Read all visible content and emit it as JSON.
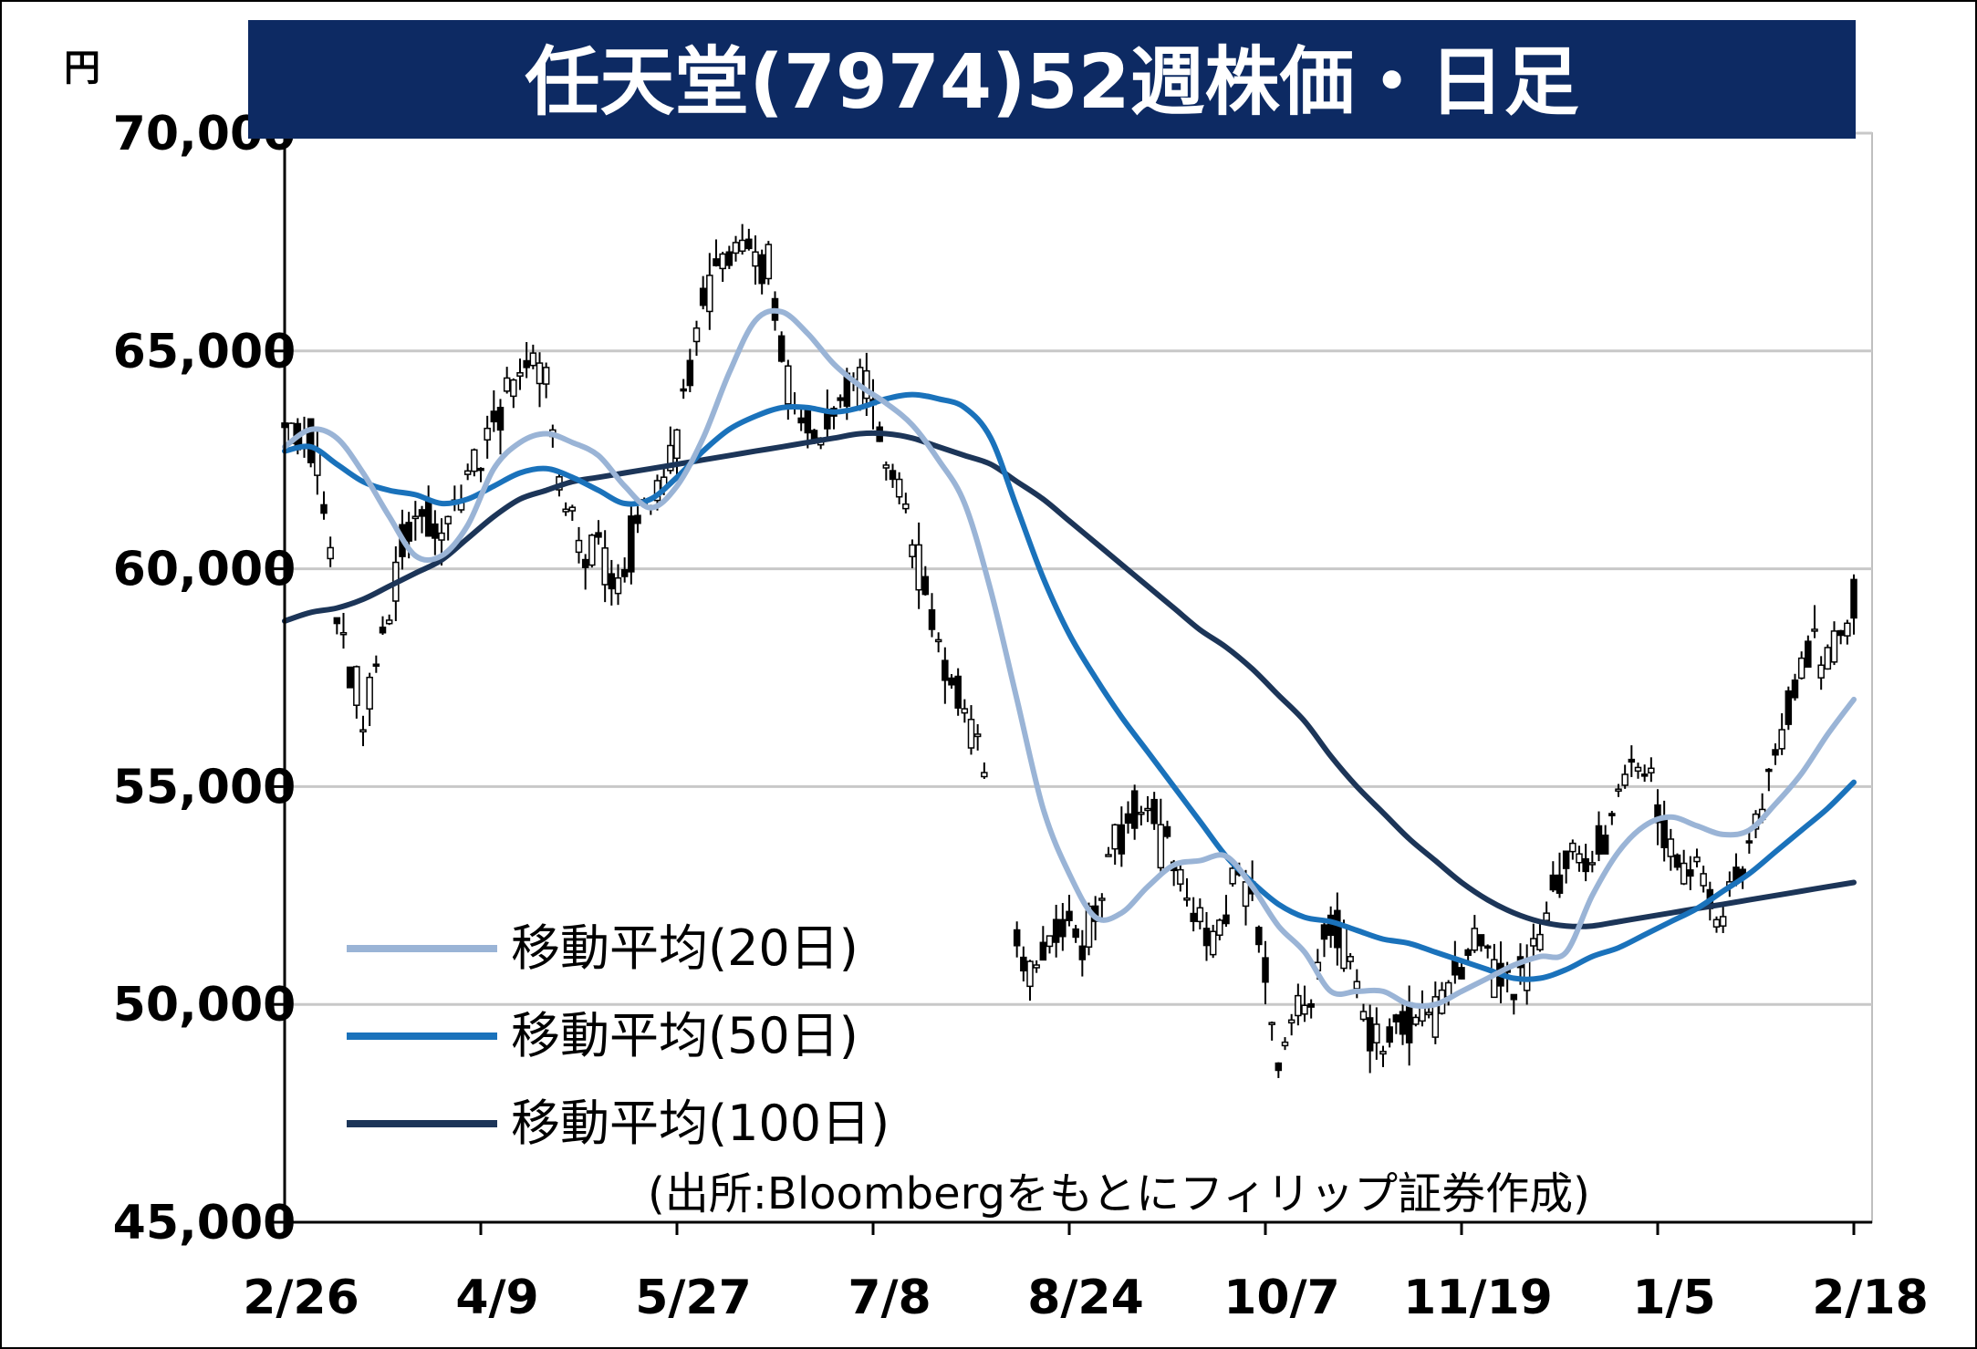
{
  "chart_data": {
    "type": "line",
    "title": "任天堂(7974)52週株価・日足",
    "unit_label": "円",
    "ylim": [
      45000,
      70000
    ],
    "yticks": [
      45000,
      50000,
      55000,
      60000,
      65000,
      70000
    ],
    "ytick_labels": [
      "45,000",
      "50,000",
      "55,000",
      "60,000",
      "65,000",
      "70,000"
    ],
    "x_tick_labels": [
      "2/26",
      "4/9",
      "5/27",
      "7/8",
      "8/24",
      "10/7",
      "11/19",
      "1/5",
      "2/18"
    ],
    "x_tick_index": [
      0,
      30,
      60,
      90,
      120,
      150,
      180,
      210,
      240
    ],
    "grid": "horizontal",
    "legend_position": "bottom-left",
    "source": "(出所:Bloombergをもとにフィリップ証券作成)",
    "colors": {
      "title_bg": "#0d2a63",
      "title_fg": "#ffffff",
      "ma20": "#9ab4d6",
      "ma50": "#1a72bb",
      "ma100": "#1c3558",
      "candle": "#000000",
      "grid": "#c8c8c8"
    },
    "series": [
      {
        "name": "移動平均(20日)",
        "key": "ma20",
        "anchors": [
          [
            0,
            62800
          ],
          [
            4,
            63200
          ],
          [
            8,
            63000
          ],
          [
            12,
            62200
          ],
          [
            16,
            61200
          ],
          [
            20,
            60300
          ],
          [
            24,
            60300
          ],
          [
            28,
            61000
          ],
          [
            32,
            62300
          ],
          [
            36,
            62900
          ],
          [
            40,
            63100
          ],
          [
            44,
            62900
          ],
          [
            48,
            62600
          ],
          [
            52,
            61900
          ],
          [
            56,
            61400
          ],
          [
            60,
            61900
          ],
          [
            64,
            63000
          ],
          [
            68,
            64500
          ],
          [
            72,
            65700
          ],
          [
            76,
            65900
          ],
          [
            80,
            65400
          ],
          [
            84,
            64700
          ],
          [
            88,
            64200
          ],
          [
            92,
            63800
          ],
          [
            96,
            63300
          ],
          [
            100,
            62500
          ],
          [
            104,
            61500
          ],
          [
            108,
            59500
          ],
          [
            112,
            57000
          ],
          [
            116,
            54500
          ],
          [
            120,
            53000
          ],
          [
            124,
            52000
          ],
          [
            128,
            52100
          ],
          [
            132,
            52700
          ],
          [
            136,
            53200
          ],
          [
            140,
            53300
          ],
          [
            144,
            53400
          ],
          [
            148,
            52700
          ],
          [
            152,
            51800
          ],
          [
            156,
            51200
          ],
          [
            160,
            50300
          ],
          [
            164,
            50300
          ],
          [
            168,
            50300
          ],
          [
            172,
            50000
          ],
          [
            176,
            50000
          ],
          [
            180,
            50300
          ],
          [
            184,
            50600
          ],
          [
            188,
            50900
          ],
          [
            192,
            51100
          ],
          [
            196,
            51200
          ],
          [
            200,
            52500
          ],
          [
            204,
            53500
          ],
          [
            208,
            54100
          ],
          [
            212,
            54300
          ],
          [
            216,
            54100
          ],
          [
            220,
            53900
          ],
          [
            224,
            54000
          ],
          [
            228,
            54600
          ],
          [
            232,
            55300
          ],
          [
            236,
            56200
          ],
          [
            240,
            57000
          ]
        ]
      },
      {
        "name": "移動平均(50日)",
        "key": "ma50",
        "anchors": [
          [
            0,
            62700
          ],
          [
            4,
            62800
          ],
          [
            8,
            62400
          ],
          [
            12,
            62000
          ],
          [
            16,
            61800
          ],
          [
            20,
            61700
          ],
          [
            24,
            61500
          ],
          [
            28,
            61600
          ],
          [
            32,
            61900
          ],
          [
            36,
            62200
          ],
          [
            40,
            62300
          ],
          [
            44,
            62100
          ],
          [
            48,
            61800
          ],
          [
            52,
            61500
          ],
          [
            56,
            61600
          ],
          [
            60,
            62100
          ],
          [
            64,
            62700
          ],
          [
            68,
            63200
          ],
          [
            72,
            63500
          ],
          [
            76,
            63700
          ],
          [
            80,
            63700
          ],
          [
            84,
            63600
          ],
          [
            88,
            63700
          ],
          [
            92,
            63900
          ],
          [
            96,
            64000
          ],
          [
            100,
            63900
          ],
          [
            104,
            63700
          ],
          [
            108,
            63000
          ],
          [
            112,
            61400
          ],
          [
            116,
            59800
          ],
          [
            120,
            58500
          ],
          [
            124,
            57500
          ],
          [
            128,
            56600
          ],
          [
            132,
            55800
          ],
          [
            136,
            55000
          ],
          [
            140,
            54200
          ],
          [
            144,
            53400
          ],
          [
            148,
            52800
          ],
          [
            152,
            52300
          ],
          [
            156,
            52000
          ],
          [
            160,
            51900
          ],
          [
            164,
            51700
          ],
          [
            168,
            51500
          ],
          [
            172,
            51400
          ],
          [
            176,
            51200
          ],
          [
            180,
            51000
          ],
          [
            184,
            50800
          ],
          [
            188,
            50600
          ],
          [
            192,
            50600
          ],
          [
            196,
            50800
          ],
          [
            200,
            51100
          ],
          [
            204,
            51300
          ],
          [
            208,
            51600
          ],
          [
            212,
            51900
          ],
          [
            216,
            52200
          ],
          [
            220,
            52600
          ],
          [
            224,
            53000
          ],
          [
            228,
            53500
          ],
          [
            232,
            54000
          ],
          [
            236,
            54500
          ],
          [
            240,
            55100
          ]
        ]
      },
      {
        "name": "移動平均(100日)",
        "key": "ma100",
        "anchors": [
          [
            0,
            58800
          ],
          [
            4,
            59000
          ],
          [
            8,
            59100
          ],
          [
            12,
            59300
          ],
          [
            16,
            59600
          ],
          [
            20,
            59900
          ],
          [
            24,
            60200
          ],
          [
            28,
            60700
          ],
          [
            32,
            61200
          ],
          [
            36,
            61600
          ],
          [
            40,
            61800
          ],
          [
            44,
            62000
          ],
          [
            48,
            62100
          ],
          [
            52,
            62200
          ],
          [
            56,
            62300
          ],
          [
            60,
            62400
          ],
          [
            64,
            62500
          ],
          [
            68,
            62600
          ],
          [
            72,
            62700
          ],
          [
            76,
            62800
          ],
          [
            80,
            62900
          ],
          [
            84,
            63000
          ],
          [
            88,
            63100
          ],
          [
            92,
            63100
          ],
          [
            96,
            63000
          ],
          [
            100,
            62800
          ],
          [
            104,
            62600
          ],
          [
            108,
            62400
          ],
          [
            112,
            62000
          ],
          [
            116,
            61600
          ],
          [
            120,
            61100
          ],
          [
            124,
            60600
          ],
          [
            128,
            60100
          ],
          [
            132,
            59600
          ],
          [
            136,
            59100
          ],
          [
            140,
            58600
          ],
          [
            144,
            58200
          ],
          [
            148,
            57700
          ],
          [
            152,
            57100
          ],
          [
            156,
            56500
          ],
          [
            160,
            55700
          ],
          [
            164,
            55000
          ],
          [
            168,
            54400
          ],
          [
            172,
            53800
          ],
          [
            176,
            53300
          ],
          [
            180,
            52800
          ],
          [
            184,
            52400
          ],
          [
            188,
            52100
          ],
          [
            192,
            51900
          ],
          [
            196,
            51800
          ],
          [
            200,
            51800
          ],
          [
            204,
            51900
          ],
          [
            208,
            52000
          ],
          [
            212,
            52100
          ],
          [
            216,
            52200
          ],
          [
            220,
            52300
          ],
          [
            224,
            52400
          ],
          [
            228,
            52500
          ],
          [
            232,
            52600
          ],
          [
            236,
            52700
          ],
          [
            240,
            52800
          ]
        ]
      }
    ],
    "price_anchors": [
      [
        0,
        63500
      ],
      [
        2,
        63000
      ],
      [
        4,
        62800
      ],
      [
        6,
        61500
      ],
      [
        8,
        59000
      ],
      [
        10,
        57500
      ],
      [
        12,
        56800
      ],
      [
        14,
        57800
      ],
      [
        16,
        59000
      ],
      [
        18,
        60500
      ],
      [
        20,
        61800
      ],
      [
        22,
        61200
      ],
      [
        24,
        60800
      ],
      [
        26,
        61500
      ],
      [
        28,
        62300
      ],
      [
        30,
        62500
      ],
      [
        32,
        63300
      ],
      [
        34,
        64200
      ],
      [
        36,
        64500
      ],
      [
        38,
        64800
      ],
      [
        40,
        64200
      ],
      [
        42,
        62000
      ],
      [
        44,
        61200
      ],
      [
        46,
        60000
      ],
      [
        48,
        60800
      ],
      [
        50,
        59500
      ],
      [
        52,
        60200
      ],
      [
        54,
        61000
      ],
      [
        56,
        61500
      ],
      [
        58,
        62000
      ],
      [
        60,
        63000
      ],
      [
        62,
        64500
      ],
      [
        64,
        66000
      ],
      [
        66,
        67000
      ],
      [
        68,
        67000
      ],
      [
        70,
        67500
      ],
      [
        72,
        67200
      ],
      [
        74,
        66800
      ],
      [
        76,
        65000
      ],
      [
        78,
        63500
      ],
      [
        80,
        63300
      ],
      [
        82,
        63000
      ],
      [
        84,
        63600
      ],
      [
        86,
        64000
      ],
      [
        88,
        64200
      ],
      [
        90,
        63800
      ],
      [
        92,
        62500
      ],
      [
        94,
        61800
      ],
      [
        96,
        60500
      ],
      [
        98,
        59500
      ],
      [
        100,
        58500
      ],
      [
        102,
        57500
      ],
      [
        104,
        56500
      ],
      [
        106,
        55800
      ],
      [
        108,
        55300
      ],
      [
        110,
        54500
      ],
      [
        112,
        51500
      ],
      [
        114,
        50700
      ],
      [
        116,
        51200
      ],
      [
        118,
        51600
      ],
      [
        120,
        52000
      ],
      [
        122,
        51500
      ],
      [
        124,
        52500
      ],
      [
        126,
        53300
      ],
      [
        128,
        54000
      ],
      [
        130,
        54500
      ],
      [
        132,
        54800
      ],
      [
        134,
        53800
      ],
      [
        136,
        53500
      ],
      [
        138,
        52600
      ],
      [
        140,
        52000
      ],
      [
        142,
        51500
      ],
      [
        144,
        52200
      ],
      [
        146,
        53200
      ],
      [
        148,
        52300
      ],
      [
        150,
        50800
      ],
      [
        152,
        48800
      ],
      [
        154,
        49500
      ],
      [
        156,
        50300
      ],
      [
        158,
        51000
      ],
      [
        160,
        51800
      ],
      [
        162,
        51500
      ],
      [
        164,
        50200
      ],
      [
        166,
        49200
      ],
      [
        168,
        49000
      ],
      [
        170,
        49800
      ],
      [
        172,
        49500
      ],
      [
        174,
        49500
      ],
      [
        176,
        49700
      ],
      [
        178,
        50300
      ],
      [
        180,
        50800
      ],
      [
        182,
        51500
      ],
      [
        184,
        51000
      ],
      [
        186,
        50500
      ],
      [
        188,
        50200
      ],
      [
        190,
        50800
      ],
      [
        192,
        51500
      ],
      [
        194,
        52700
      ],
      [
        196,
        53300
      ],
      [
        198,
        53500
      ],
      [
        200,
        53200
      ],
      [
        202,
        53800
      ],
      [
        204,
        55000
      ],
      [
        206,
        55600
      ],
      [
        208,
        55500
      ],
      [
        210,
        54500
      ],
      [
        212,
        53500
      ],
      [
        214,
        53100
      ],
      [
        216,
        53300
      ],
      [
        218,
        52400
      ],
      [
        220,
        52000
      ],
      [
        222,
        53000
      ],
      [
        224,
        53800
      ],
      [
        226,
        54600
      ],
      [
        228,
        55500
      ],
      [
        230,
        56800
      ],
      [
        232,
        57500
      ],
      [
        234,
        58200
      ],
      [
        236,
        58000
      ],
      [
        238,
        58300
      ],
      [
        240,
        59300
      ]
    ]
  },
  "legend": {
    "items": [
      {
        "label": "移動平均(20日)",
        "key": "ma20"
      },
      {
        "label": "移動平均(50日)",
        "key": "ma50"
      },
      {
        "label": "移動平均(100日)",
        "key": "ma100"
      }
    ]
  }
}
